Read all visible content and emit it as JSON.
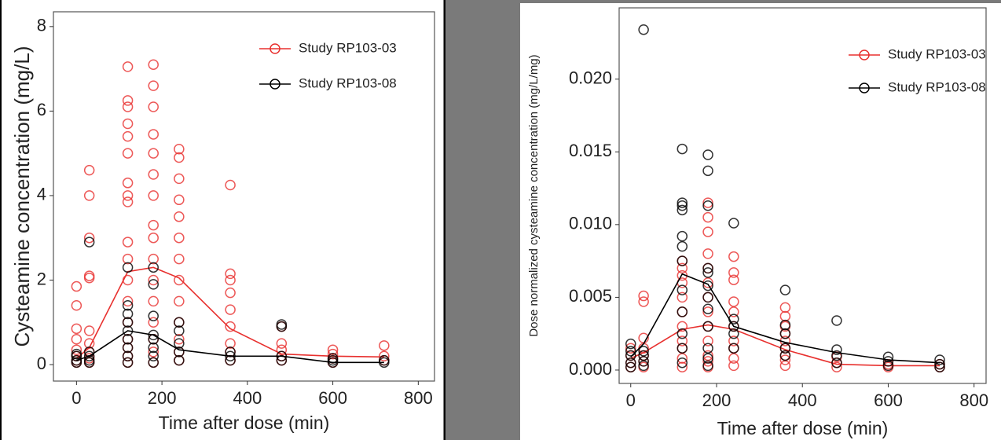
{
  "chart_data": [
    {
      "type": "scatter",
      "x_label": "Time after dose (min)",
      "y_label": "Cysteamine concentration (mg/L)",
      "xlim": [
        -54,
        838
      ],
      "ylim": [
        -0.39,
        8.35
      ],
      "xticks": [
        0,
        200,
        400,
        600,
        800
      ],
      "yticks": [
        0,
        2,
        4,
        6,
        8
      ],
      "legend": "upper right",
      "series": [
        {
          "name": "Study RP103-03",
          "color": "#e8302e",
          "x": [
            0,
            0,
            0,
            0,
            0,
            0,
            0,
            0,
            30,
            30,
            30,
            30,
            30,
            30,
            30,
            30,
            30,
            30,
            120,
            120,
            120,
            120,
            120,
            120,
            120,
            120,
            120,
            120,
            120,
            120,
            120,
            120,
            120,
            120,
            120,
            120,
            180,
            180,
            180,
            180,
            180,
            180,
            180,
            180,
            180,
            180,
            180,
            180,
            180,
            180,
            180,
            180,
            240,
            240,
            240,
            240,
            240,
            240,
            240,
            240,
            240,
            240,
            240,
            240,
            240,
            360,
            360,
            360,
            360,
            360,
            360,
            360,
            360,
            360,
            480,
            480,
            480,
            480,
            480,
            600,
            600,
            600,
            600,
            720,
            720,
            720
          ],
          "y": [
            0.05,
            0.1,
            0.2,
            0.35,
            0.6,
            0.85,
            1.4,
            1.85,
            0.05,
            0.15,
            0.3,
            0.5,
            0.8,
            2.05,
            2.1,
            3.0,
            4.0,
            4.6,
            0.05,
            0.2,
            0.4,
            0.6,
            1.0,
            1.5,
            2.0,
            2.5,
            2.9,
            3.85,
            4.0,
            4.3,
            5.0,
            5.4,
            5.7,
            6.1,
            6.25,
            7.05,
            0.05,
            0.3,
            0.6,
            1.0,
            1.5,
            2.0,
            2.5,
            3.0,
            3.3,
            4.0,
            4.5,
            5.0,
            5.45,
            6.1,
            6.6,
            7.1,
            0.1,
            0.3,
            0.6,
            1.0,
            1.5,
            2.0,
            2.5,
            3.0,
            3.5,
            3.9,
            4.4,
            4.9,
            5.1,
            0.1,
            0.3,
            0.5,
            0.9,
            1.3,
            1.7,
            2.0,
            2.15,
            4.25,
            0.1,
            0.2,
            0.35,
            0.5,
            0.9,
            0.05,
            0.15,
            0.25,
            0.35,
            0.1,
            0.2,
            0.45
          ],
          "line_x": [
            0,
            30,
            120,
            180,
            240,
            360,
            480,
            600,
            720
          ],
          "line_y": [
            0.15,
            0.4,
            2.2,
            2.3,
            2.05,
            0.85,
            0.25,
            0.2,
            0.18
          ]
        },
        {
          "name": "Study RP103-08",
          "color": "#000000",
          "x": [
            0,
            0,
            0,
            0,
            30,
            30,
            30,
            30,
            30,
            120,
            120,
            120,
            120,
            120,
            120,
            120,
            120,
            120,
            180,
            180,
            180,
            180,
            180,
            180,
            180,
            180,
            240,
            240,
            240,
            240,
            240,
            360,
            360,
            360,
            480,
            480,
            480,
            480,
            600,
            600,
            600,
            720,
            720
          ],
          "y": [
            0.05,
            0.1,
            0.2,
            0.25,
            0.05,
            0.1,
            0.2,
            0.3,
            2.9,
            0.05,
            0.2,
            0.4,
            0.6,
            0.8,
            1.0,
            1.2,
            1.4,
            2.3,
            0.05,
            0.2,
            0.4,
            0.6,
            0.7,
            1.15,
            1.9,
            2.3,
            0.1,
            0.3,
            0.5,
            0.8,
            1.0,
            0.1,
            0.2,
            0.3,
            0.1,
            0.2,
            0.9,
            0.95,
            0.05,
            0.1,
            0.15,
            0.05,
            0.1
          ],
          "line_x": [
            0,
            30,
            120,
            180,
            240,
            360,
            480,
            600,
            720
          ],
          "line_y": [
            0.1,
            0.2,
            0.8,
            0.7,
            0.35,
            0.2,
            0.2,
            0.05,
            0.05
          ]
        }
      ]
    },
    {
      "type": "scatter",
      "x_label": "Time after dose (min)",
      "y_label": "Dose normalized cysteamine concentration (mg/L/mg)",
      "xlim": [
        -27,
        828
      ],
      "ylim": [
        -0.00092,
        0.0249
      ],
      "xticks": [
        0,
        200,
        400,
        600,
        800
      ],
      "yticks": [
        {
          "value": 0,
          "label": "0.000"
        },
        {
          "value": 0.005,
          "label": "0.005"
        },
        {
          "value": 0.01,
          "label": "0.010"
        },
        {
          "value": 0.015,
          "label": "0.015"
        },
        {
          "value": 0.02,
          "label": "0.020"
        }
      ],
      "legend": "upper right",
      "series": [
        {
          "name": "Study RP103-03",
          "color": "#e8302e",
          "x": [
            0,
            0,
            0,
            0,
            30,
            30,
            30,
            30,
            30,
            30,
            30,
            120,
            120,
            120,
            120,
            120,
            120,
            120,
            120,
            120,
            120,
            120,
            180,
            180,
            180,
            180,
            180,
            180,
            180,
            180,
            180,
            180,
            180,
            180,
            180,
            240,
            240,
            240,
            240,
            240,
            240,
            240,
            240,
            240,
            240,
            360,
            360,
            360,
            360,
            360,
            360,
            360,
            360,
            360,
            480,
            480,
            480,
            600,
            600,
            720,
            720
          ],
          "y": [
            0.0002,
            0.0005,
            0.001,
            0.0015,
            0.0002,
            0.0006,
            0.001,
            0.0015,
            0.0022,
            0.0047,
            0.0051,
            0.0002,
            0.0008,
            0.0015,
            0.002,
            0.003,
            0.004,
            0.005,
            0.006,
            0.0065,
            0.007,
            0.0075,
            0.0002,
            0.0006,
            0.001,
            0.002,
            0.003,
            0.004,
            0.005,
            0.006,
            0.007,
            0.008,
            0.0095,
            0.0105,
            0.0115,
            0.0003,
            0.0008,
            0.0015,
            0.002,
            0.003,
            0.004,
            0.0047,
            0.0062,
            0.0067,
            0.0078,
            0.0003,
            0.0007,
            0.001,
            0.0015,
            0.002,
            0.0025,
            0.003,
            0.0037,
            0.0043,
            0.0002,
            0.0005,
            0.0009,
            0.0002,
            0.0004,
            0.0002,
            0.0004
          ],
          "line_x": [
            0,
            30,
            120,
            180,
            240,
            360,
            480,
            600,
            720
          ],
          "line_y": [
            0.0008,
            0.0012,
            0.0028,
            0.0031,
            0.0028,
            0.0014,
            0.0004,
            0.0003,
            0.0003
          ]
        },
        {
          "name": "Study RP103-08",
          "color": "#000000",
          "x": [
            0,
            0,
            0,
            0,
            0,
            30,
            30,
            30,
            30,
            30,
            120,
            120,
            120,
            120,
            120,
            120,
            120,
            120,
            120,
            120,
            120,
            120,
            180,
            180,
            180,
            180,
            180,
            180,
            180,
            180,
            180,
            180,
            180,
            180,
            240,
            240,
            240,
            240,
            240,
            360,
            360,
            360,
            360,
            360,
            480,
            480,
            480,
            480,
            600,
            600,
            600,
            720,
            720,
            720
          ],
          "y": [
            0.0002,
            0.0005,
            0.001,
            0.0013,
            0.0018,
            0.0003,
            0.0006,
            0.001,
            0.0013,
            0.0234,
            0.0005,
            0.0015,
            0.0025,
            0.004,
            0.0055,
            0.0075,
            0.0085,
            0.0092,
            0.011,
            0.0113,
            0.0115,
            0.0152,
            0.0003,
            0.0008,
            0.0015,
            0.003,
            0.0042,
            0.005,
            0.0058,
            0.0067,
            0.007,
            0.0113,
            0.0137,
            0.0148,
            0.0015,
            0.0025,
            0.003,
            0.0035,
            0.0101,
            0.001,
            0.0015,
            0.0025,
            0.0031,
            0.0055,
            0.0005,
            0.001,
            0.0014,
            0.0034,
            0.0003,
            0.0006,
            0.0009,
            0.0002,
            0.0004,
            0.0007
          ],
          "line_x": [
            0,
            30,
            120,
            180,
            240,
            360,
            480,
            600,
            720
          ],
          "line_y": [
            0.0009,
            0.0018,
            0.0066,
            0.0059,
            0.003,
            0.0019,
            0.0012,
            0.0007,
            0.0005
          ]
        }
      ]
    }
  ]
}
